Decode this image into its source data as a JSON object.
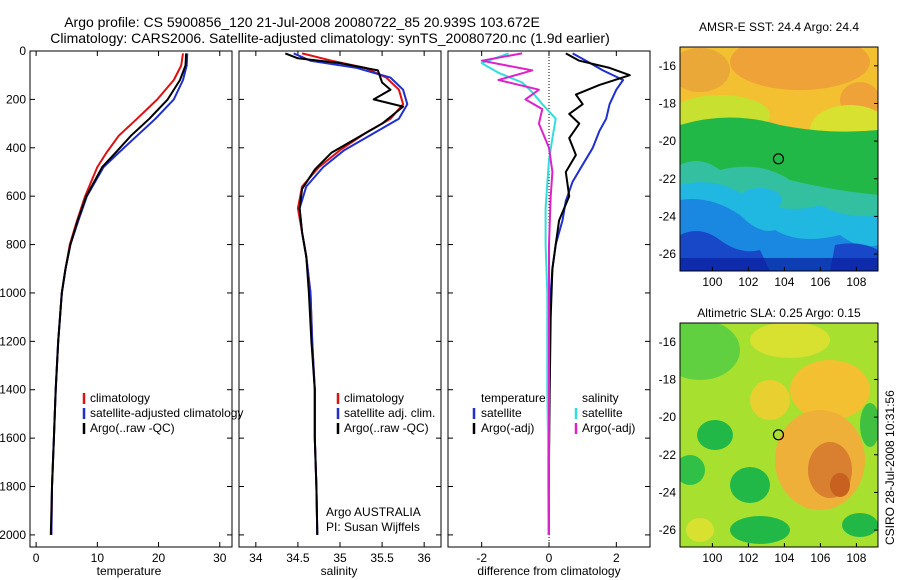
{
  "title_line1": "Argo profile: CS 5900856_120 21-Jul-2008 20080722_85 20.939S 103.672E",
  "title_line2": "Climatology: CARS2006. Satellite-adjusted climatology: synTS_20080720.nc (1.9d earlier)",
  "side_label": "CSIRO 28-Jul-2008 10:31:56",
  "colors": {
    "red": "#dd1111",
    "blue": "#1f2fd0",
    "black": "#000000",
    "cyan": "#33dddd",
    "magenta": "#dd22cc"
  },
  "chart_data": [
    {
      "type": "line",
      "xlabel": "temperature",
      "xlim": [
        -1,
        32
      ],
      "ylim": [
        0,
        2050
      ],
      "xticks": [
        0,
        10,
        20,
        30
      ],
      "yticks": [
        0,
        200,
        400,
        600,
        800,
        1000,
        1200,
        1400,
        1600,
        1800,
        2000
      ],
      "legend": [
        "climatology",
        "satellite-adjusted climatology",
        "Argo(..raw -QC)"
      ],
      "series": [
        {
          "name": "climatology",
          "color": "red",
          "x": [
            24.0,
            23.7,
            22.5,
            19.8,
            16.5,
            13.5,
            11.5,
            10.0,
            8.0,
            6.7,
            5.5,
            4.8,
            4.2,
            3.6,
            3.2,
            2.9,
            2.6,
            2.5
          ],
          "y": [
            10,
            60,
            120,
            200,
            280,
            350,
            420,
            480,
            600,
            700,
            800,
            900,
            1000,
            1200,
            1400,
            1600,
            1800,
            2000
          ]
        },
        {
          "name": "satellite-adjusted climatology",
          "color": "blue",
          "x": [
            24.7,
            24.6,
            24.0,
            22.5,
            19.5,
            16.5,
            13.5,
            11.0,
            8.3,
            6.9,
            5.6,
            4.8,
            4.2,
            3.6,
            3.2,
            2.9,
            2.6,
            2.5
          ],
          "y": [
            10,
            60,
            120,
            200,
            280,
            350,
            420,
            480,
            600,
            700,
            800,
            900,
            1000,
            1200,
            1400,
            1600,
            1800,
            2000
          ]
        },
        {
          "name": "Argo(..raw -QC)",
          "color": "black",
          "x": [
            24.5,
            24.4,
            23.5,
            21.5,
            18.5,
            15.5,
            13.0,
            10.8,
            8.2,
            6.8,
            5.6,
            4.8,
            4.2,
            3.6,
            3.2,
            2.9,
            2.6,
            2.4
          ],
          "y": [
            10,
            60,
            120,
            200,
            280,
            350,
            420,
            480,
            600,
            700,
            800,
            900,
            1000,
            1200,
            1400,
            1600,
            1800,
            2000
          ]
        }
      ]
    },
    {
      "type": "line",
      "xlabel": "salinity",
      "xlim": [
        33.8,
        36.2
      ],
      "ylim": [
        0,
        2050
      ],
      "xticks": [
        34,
        34.5,
        35,
        35.5,
        36
      ],
      "legend": [
        "climatology",
        "satellite adj. clim.",
        "Argo(..raw -QC)"
      ],
      "annotation": [
        "Argo AUSTRALIA",
        "PI: Susan Wijffels"
      ],
      "series": [
        {
          "name": "climatology",
          "color": "red",
          "x": [
            34.55,
            34.9,
            35.3,
            35.55,
            35.7,
            35.75,
            35.6,
            35.3,
            35.0,
            34.75,
            34.55,
            34.5,
            34.55,
            34.6,
            34.65,
            34.67,
            34.7,
            34.7,
            34.72,
            34.73
          ],
          "y": [
            10,
            40,
            70,
            110,
            160,
            220,
            280,
            340,
            410,
            480,
            560,
            650,
            750,
            850,
            1000,
            1200,
            1400,
            1600,
            1800,
            2000
          ]
        },
        {
          "name": "satellite adj. clim.",
          "color": "blue",
          "x": [
            34.45,
            34.65,
            35.2,
            35.6,
            35.75,
            35.8,
            35.7,
            35.4,
            35.05,
            34.8,
            34.6,
            34.52,
            34.55,
            34.6,
            34.65,
            34.67,
            34.7,
            34.7,
            34.72,
            34.73
          ],
          "y": [
            10,
            40,
            70,
            110,
            160,
            220,
            280,
            340,
            410,
            480,
            560,
            650,
            750,
            850,
            1000,
            1200,
            1400,
            1600,
            1800,
            2000
          ]
        },
        {
          "name": "Argo(..raw -QC)",
          "color": "black",
          "x": [
            34.35,
            34.5,
            35.0,
            35.45,
            35.5,
            35.6,
            35.4,
            35.75,
            35.5,
            35.2,
            34.9,
            34.7,
            34.55,
            34.52,
            34.55,
            34.6,
            34.63,
            34.66,
            34.7,
            34.7,
            34.72,
            34.73
          ],
          "y": [
            10,
            30,
            50,
            80,
            130,
            160,
            200,
            230,
            300,
            360,
            420,
            490,
            570,
            650,
            750,
            850,
            1000,
            1200,
            1400,
            1600,
            1800,
            2000
          ]
        }
      ]
    },
    {
      "type": "line",
      "xlabel": "difference from climatology",
      "xlim": [
        -3,
        3
      ],
      "ylim": [
        0,
        2050
      ],
      "xticks": [
        -2,
        0,
        2
      ],
      "legend_titles": [
        "temperature",
        "salinity"
      ],
      "legend": [
        "satellite",
        "Argo(-adj)",
        "satellite",
        "Argo(-adj)"
      ],
      "series": [
        {
          "name": "temperature satellite",
          "color": "blue",
          "x": [
            0.7,
            1.1,
            1.6,
            2.2,
            2.0,
            1.8,
            1.7,
            1.5,
            1.3,
            1.0,
            0.7,
            0.5,
            0.4,
            0.2,
            0.1,
            0.05,
            0.02,
            0.0,
            0.0,
            0.0
          ],
          "y": [
            10,
            40,
            80,
            120,
            160,
            220,
            280,
            330,
            400,
            470,
            540,
            620,
            700,
            800,
            900,
            1000,
            1200,
            1500,
            1800,
            2000
          ]
        },
        {
          "name": "temperature Argo(-adj)",
          "color": "black",
          "x": [
            0.5,
            0.9,
            1.8,
            2.4,
            1.5,
            0.8,
            1.0,
            0.6,
            0.9,
            0.6,
            0.8,
            0.5,
            0.6,
            0.3,
            0.2,
            0.1,
            0.05,
            0.02,
            0.0,
            0.0
          ],
          "y": [
            10,
            40,
            70,
            100,
            140,
            180,
            220,
            260,
            300,
            360,
            430,
            500,
            600,
            700,
            800,
            900,
            1100,
            1400,
            1700,
            2000
          ]
        },
        {
          "name": "salinity satellite",
          "color": "cyan",
          "x": [
            -1.2,
            -2.0,
            -1.5,
            -0.8,
            -0.5,
            -0.2,
            0.2,
            0.1,
            0.0,
            -0.05,
            -0.1,
            -0.1,
            -0.05,
            -0.05,
            -0.05,
            -0.03,
            -0.03,
            -0.02,
            -0.02
          ],
          "y": [
            10,
            50,
            90,
            130,
            170,
            220,
            280,
            360,
            450,
            550,
            650,
            800,
            1000,
            1200,
            1400,
            1600,
            1800,
            1950,
            2000
          ]
        },
        {
          "name": "salinity Argo(-adj)",
          "color": "magenta",
          "x": [
            -0.8,
            -2.0,
            -0.5,
            -1.5,
            -0.3,
            -0.7,
            -0.2,
            -0.3,
            0.0,
            0.1,
            0.05,
            0.0,
            0.0,
            0.0,
            0.0,
            0.0,
            0.0
          ],
          "y": [
            10,
            40,
            80,
            120,
            160,
            200,
            240,
            300,
            400,
            500,
            600,
            800,
            1000,
            1300,
            1600,
            1800,
            2000
          ]
        }
      ]
    },
    {
      "type": "heatmap",
      "title": "AMSR-E SST: 24.4 Argo: 24.4",
      "xticks": [
        100,
        102,
        104,
        106,
        108
      ],
      "yticks": [
        -16,
        -18,
        -20,
        -22,
        -24,
        -26
      ],
      "xlim": [
        98.2,
        109.2
      ],
      "ylim": [
        -26.9,
        -15.0
      ],
      "marker": {
        "lon": 103.67,
        "lat": -20.94
      }
    },
    {
      "type": "heatmap",
      "title": "Altimetric SLA: 0.25 Argo: 0.15",
      "xticks": [
        100,
        102,
        104,
        106,
        108
      ],
      "yticks": [
        -16,
        -18,
        -20,
        -22,
        -24,
        -26
      ],
      "xlim": [
        98.2,
        109.2
      ],
      "ylim": [
        -26.9,
        -15.0
      ],
      "marker": {
        "lon": 103.67,
        "lat": -20.94
      }
    }
  ]
}
